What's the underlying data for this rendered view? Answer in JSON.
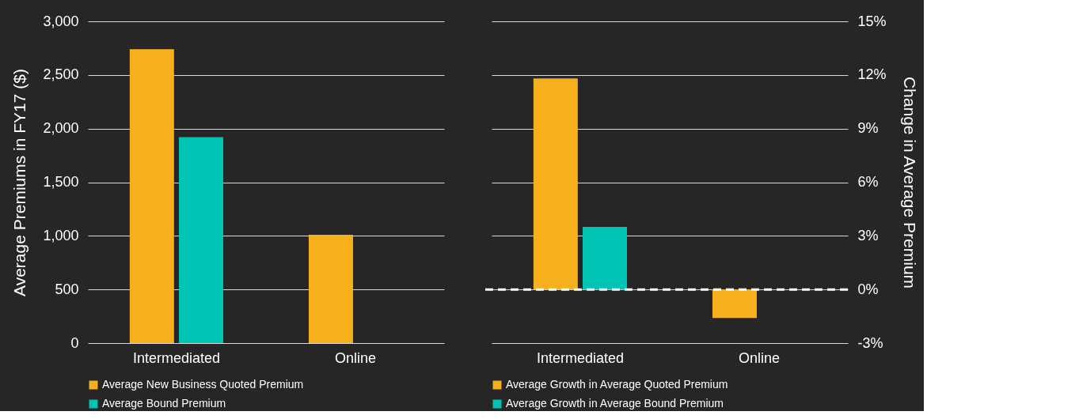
{
  "chart_data": [
    {
      "type": "bar",
      "ylabel": "Average Premiums in FY17 ($)",
      "categories": [
        "Intermediated",
        "Online"
      ],
      "series": [
        {
          "name": "Average New Business Quoted Premium",
          "color": "#f5b01c",
          "values": [
            2740,
            1010
          ]
        },
        {
          "name": "Average Bound Premium",
          "color": "#00c4b3",
          "values": [
            1920,
            null
          ]
        }
      ],
      "ylim": [
        0,
        3000
      ],
      "yticks": [
        0,
        500,
        {
          "value": 1000,
          "label": "1,000"
        },
        {
          "value": 1500,
          "label": "1,500"
        },
        {
          "value": 2000,
          "label": "2,000"
        },
        {
          "value": 2500,
          "label": "2,500"
        },
        {
          "value": 3000,
          "label": "3,000"
        }
      ],
      "grid": "y",
      "legend": "bottom"
    },
    {
      "type": "bar",
      "y2label": "Change in Average Premium",
      "categories": [
        "Intermediated",
        "Online"
      ],
      "series": [
        {
          "name": "Average Growth in Average Quoted Premium",
          "color": "#f5b01c",
          "values": [
            11.8,
            -1.6
          ],
          "axis": "y2"
        },
        {
          "name": "Average Growth in Average Bound Premium",
          "color": "#00c4b3",
          "values": [
            3.5,
            null
          ],
          "axis": "y2"
        }
      ],
      "y2lim": [
        -3,
        15
      ],
      "y2ticks": [
        {
          "value": -3,
          "label": "-3%"
        },
        {
          "value": 0,
          "label": "0%"
        },
        {
          "value": 3,
          "label": "3%"
        },
        {
          "value": 6,
          "label": "6%"
        },
        {
          "value": 9,
          "label": "9%"
        },
        {
          "value": 12,
          "label": "12%"
        },
        {
          "value": 15,
          "label": "15%"
        }
      ],
      "ref_lines": [
        {
          "axis": "y2",
          "value": 0,
          "color": "#ffffff",
          "line_style": "dashed"
        }
      ],
      "grid": "y",
      "legend": "bottom"
    }
  ]
}
